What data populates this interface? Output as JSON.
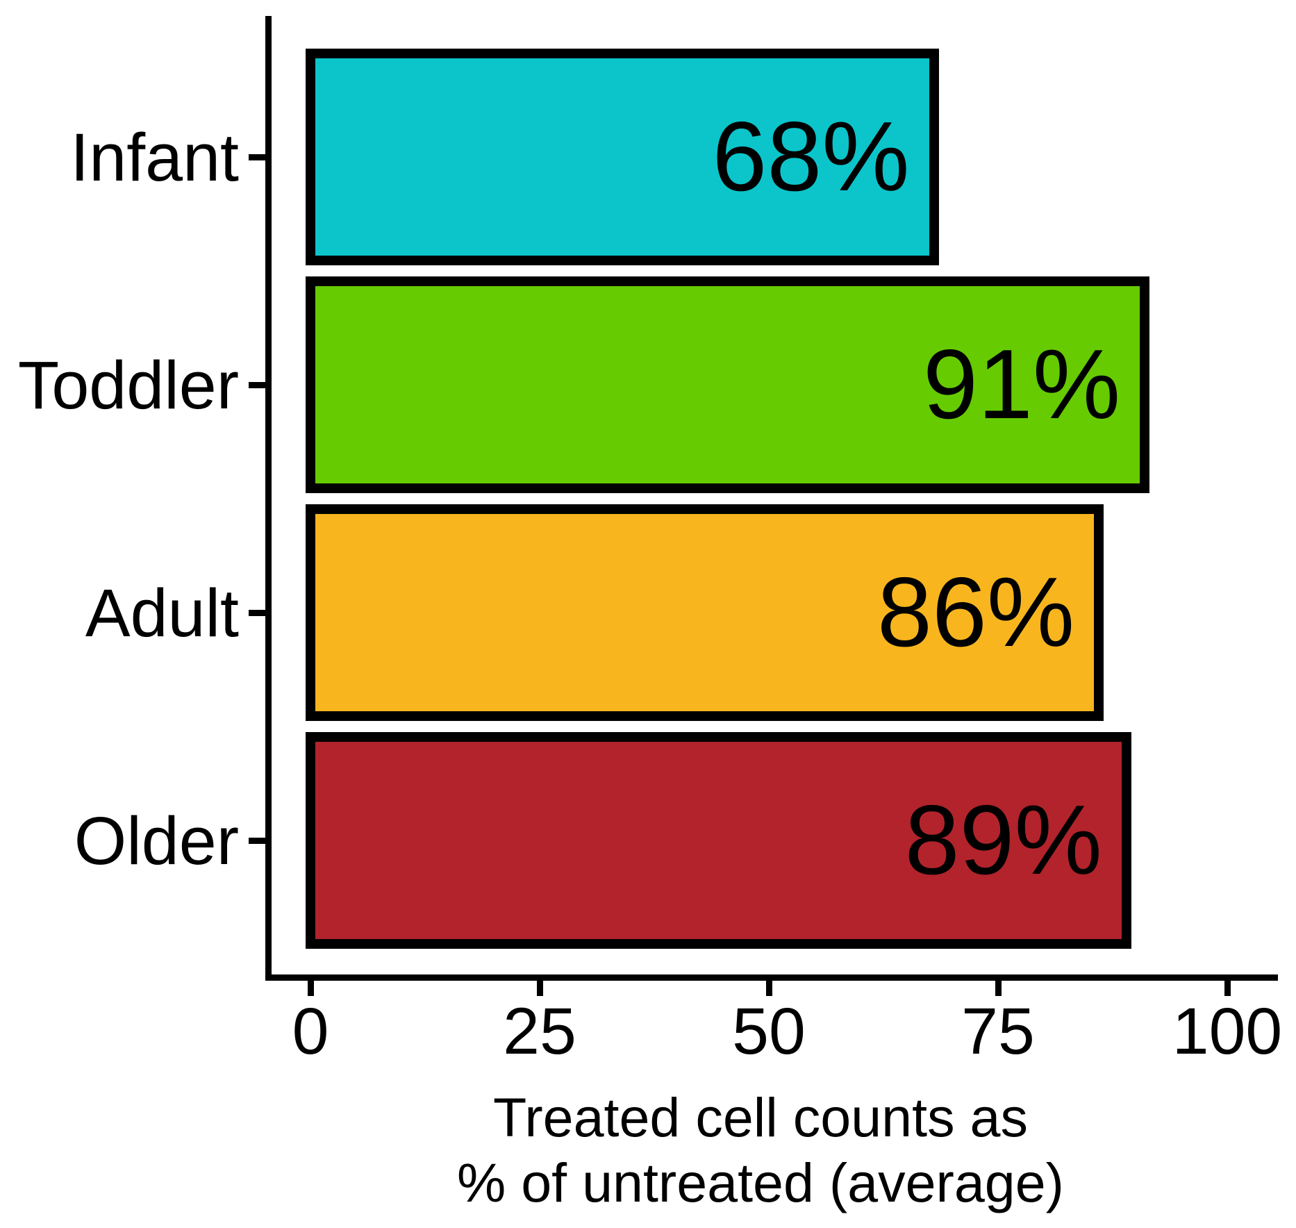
{
  "chart_data": {
    "type": "bar",
    "orientation": "horizontal",
    "title": "",
    "categories": [
      "Infant",
      "Toddler",
      "Adult",
      "Older"
    ],
    "values": [
      68,
      91,
      86,
      89
    ],
    "value_labels": [
      "68%",
      "91%",
      "86%",
      "89%"
    ],
    "bar_colors": [
      "#0BC5CB",
      "#66CB00",
      "#F8B51E",
      "#B2232B"
    ],
    "bar_border_color": "#000000",
    "xlabel_line1": "Treated cell counts as",
    "xlabel_line2": "% of untreated (average)",
    "ylabel": "",
    "x_ticks": [
      0,
      25,
      50,
      75,
      100
    ],
    "x_tick_labels": [
      "0",
      "25",
      "50",
      "75",
      "100"
    ],
    "xlim": [
      0,
      100
    ],
    "grid": false,
    "legend": false,
    "text_color": "#000000",
    "background_color": "#FFFFFF"
  }
}
